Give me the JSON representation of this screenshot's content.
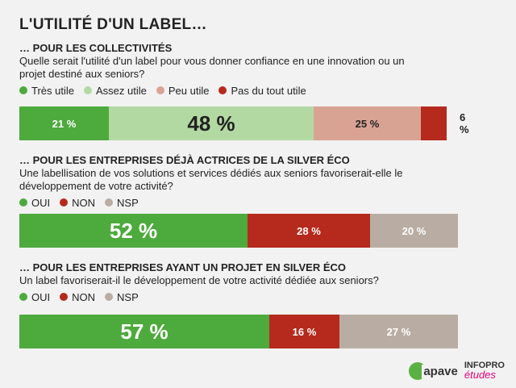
{
  "title": "L'UTILITÉ D'UN LABEL…",
  "chart_data": [
    {
      "type": "bar",
      "orientation": "horizontal-stacked-100",
      "heading": "… POUR LES COLLECTIVITÉS",
      "question": "Quelle serait l'utilité d'un label pour vous donner confiance en une innovation ou un projet destiné aux seniors?",
      "series": [
        {
          "name": "Très utile",
          "value": 21,
          "label": "21 %",
          "color": "#4daa3c",
          "font_size": 13,
          "text": "light"
        },
        {
          "name": "Assez utile",
          "value": 48,
          "label": "48 %",
          "color": "#b3d9a3",
          "font_size": 26,
          "text": "dark"
        },
        {
          "name": "Peu utile",
          "value": 25,
          "label": "25 %",
          "color": "#d9a393",
          "font_size": 13,
          "text": "dark"
        },
        {
          "name": "Pas du tout utile",
          "value": 6,
          "label": "6 %",
          "color": "#b52a1c",
          "font_size": 13,
          "text": "outside"
        }
      ]
    },
    {
      "type": "bar",
      "orientation": "horizontal-stacked-100",
      "heading": "… POUR LES ENTREPRISES DÉJÀ ACTRICES DE LA SILVER ÉCO",
      "question": "Une labellisation de vos solutions et services dédiés aux seniors favoriserait-elle le développement de votre activité?",
      "series": [
        {
          "name": "OUI",
          "value": 52,
          "label": "52 %",
          "color": "#4daa3c",
          "font_size": 26,
          "text": "light"
        },
        {
          "name": "NON",
          "value": 28,
          "label": "28 %",
          "color": "#b52a1c",
          "font_size": 13,
          "text": "light"
        },
        {
          "name": "NSP",
          "value": 20,
          "label": "20 %",
          "color": "#b9ada3",
          "font_size": 13,
          "text": "light"
        }
      ]
    },
    {
      "type": "bar",
      "orientation": "horizontal-stacked-100",
      "heading": "… POUR LES ENTREPRISES AYANT UN PROJET EN SILVER ÉCO",
      "question": "Un label favoriserait-il le développement de votre activité dédiée aux seniors?",
      "series": [
        {
          "name": "OUI",
          "value": 57,
          "label": "57 %",
          "color": "#4daa3c",
          "font_size": 26,
          "text": "light"
        },
        {
          "name": "NON",
          "value": 16,
          "label": "16 %",
          "color": "#b52a1c",
          "font_size": 13,
          "text": "light"
        },
        {
          "name": "NSP",
          "value": 27,
          "label": "27 %",
          "color": "#b9ada3",
          "font_size": 13,
          "text": "light"
        }
      ]
    }
  ],
  "logos": {
    "apave": "apave",
    "infopro_top": "INFOPRO",
    "infopro_bottom": "études"
  }
}
